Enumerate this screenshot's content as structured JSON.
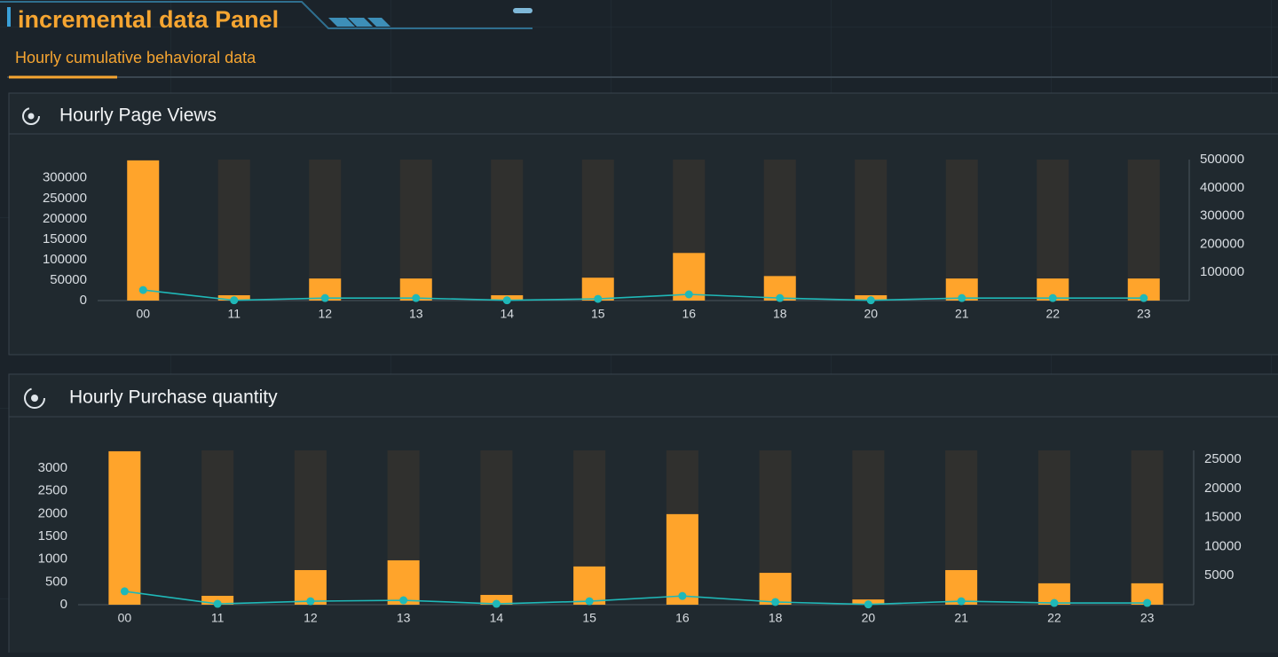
{
  "header": {
    "title": "incremental data Panel",
    "subtitle": "Hourly cumulative behavioral data"
  },
  "chart_data": [
    {
      "type": "bar",
      "title": "Hourly Page Views",
      "categories": [
        "00",
        "11",
        "12",
        "13",
        "14",
        "15",
        "16",
        "18",
        "20",
        "21",
        "22",
        "23"
      ],
      "series": [
        {
          "type": "bar",
          "color": "#ffa42b",
          "values": [
            343000,
            13000,
            54000,
            54000,
            13000,
            56000,
            116500,
            60000,
            13000,
            54000,
            54000,
            54000
          ]
        },
        {
          "type": "line",
          "axis": "y2",
          "color": "#1fb8b8",
          "values": [
            37500,
            1000,
            9000,
            9000,
            1000,
            6000,
            22000,
            9000,
            1000,
            9000,
            9000,
            9000
          ]
        }
      ],
      "ylim": [
        0,
        345000
      ],
      "yticks": [
        0,
        50000,
        100000,
        150000,
        200000,
        250000,
        300000
      ],
      "y2lim": [
        0,
        500000
      ],
      "y2ticks": [
        100000,
        200000,
        300000,
        400000,
        500000
      ]
    },
    {
      "type": "bar",
      "title": "Hourly Purchase quantity",
      "categories": [
        "00",
        "11",
        "12",
        "13",
        "14",
        "15",
        "16",
        "18",
        "20",
        "21",
        "22",
        "23"
      ],
      "series": [
        {
          "type": "bar",
          "color": "#ffa42b",
          "values": [
            3370,
            195,
            760,
            975,
            215,
            840,
            1990,
            700,
            115,
            760,
            470,
            470
          ]
        },
        {
          "type": "line",
          "axis": "y2",
          "color": "#1fb8b8",
          "values": [
            2300,
            150,
            600,
            760,
            150,
            600,
            1500,
            460,
            50,
            600,
            300,
            300
          ]
        }
      ],
      "ylim": [
        0,
        3390
      ],
      "yticks": [
        0,
        500,
        1000,
        1500,
        2000,
        2500,
        3000
      ],
      "y2lim": [
        0,
        26560
      ],
      "y2ticks": [
        5000,
        10000,
        15000,
        20000,
        25000
      ]
    }
  ]
}
